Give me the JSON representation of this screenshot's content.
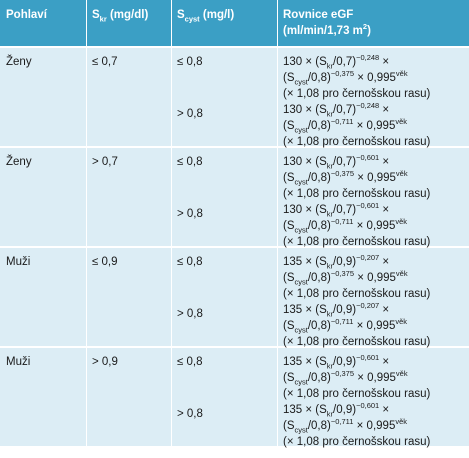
{
  "header": [
    [
      "Pohlaví"
    ],
    [
      "S",
      {
        "sub": "kr"
      },
      " (mg/dl)"
    ],
    [
      "S",
      {
        "sub": "cyst"
      },
      " (mg/l)"
    ],
    [
      "Rovnice eGF"
    ],
    [
      "(ml/min/1,73 m",
      {
        "sup": "2"
      },
      ")"
    ]
  ],
  "groups": [
    {
      "sex": "Ženy",
      "skr": "≤ 0,7",
      "rows": [
        {
          "scyst": "≤ 0,8",
          "formula": [
            [
              "130 × (S",
              {
                "sub": "kr"
              },
              "/0,7)",
              {
                "sup": "−0,248"
              },
              " ×"
            ],
            [
              "(S",
              {
                "sub": "cyst"
              },
              "/0,8)",
              {
                "sup": "−0,375"
              },
              " × 0,995",
              {
                "sup": "věk"
              }
            ],
            [
              "(× 1,08 pro černošskou rasu)"
            ]
          ]
        },
        {
          "scyst": "> 0,8",
          "formula": [
            [
              "130 × (S",
              {
                "sub": "kr"
              },
              "/0,7)",
              {
                "sup": "−0,248"
              },
              " ×"
            ],
            [
              "(S",
              {
                "sub": "cyst"
              },
              "/0,8)",
              {
                "sup": "−0,711"
              },
              " × 0,995",
              {
                "sup": "věk"
              }
            ],
            [
              "(× 1,08 pro černošskou rasu)"
            ]
          ]
        }
      ]
    },
    {
      "sex": "Ženy",
      "skr": "> 0,7",
      "rows": [
        {
          "scyst": "≤ 0,8",
          "formula": [
            [
              "130 × (S",
              {
                "sub": "kr"
              },
              "/0,7)",
              {
                "sup": "−0,601"
              },
              " ×"
            ],
            [
              "(S",
              {
                "sub": "cyst"
              },
              "/0,8)",
              {
                "sup": "−0,375"
              },
              " × 0,995",
              {
                "sup": "věk"
              }
            ],
            [
              "(× 1,08 pro černošskou rasu)"
            ]
          ]
        },
        {
          "scyst": "> 0,8",
          "formula": [
            [
              "130 × (S",
              {
                "sub": "kr"
              },
              "/0,7)",
              {
                "sup": "−0,601"
              },
              " ×"
            ],
            [
              "(S",
              {
                "sub": "cyst"
              },
              "/0,8)",
              {
                "sup": "−0,711"
              },
              " × 0,995",
              {
                "sup": "věk"
              }
            ],
            [
              "(× 1,08 pro černošskou rasu)"
            ]
          ]
        }
      ]
    },
    {
      "sex": "Muži",
      "skr": "≤ 0,9",
      "rows": [
        {
          "scyst": "≤ 0,8",
          "formula": [
            [
              "135 × (S",
              {
                "sub": "kr"
              },
              "/0,9)",
              {
                "sup": "−0,207"
              },
              " ×"
            ],
            [
              "(S",
              {
                "sub": "cyst"
              },
              "/0,8)",
              {
                "sup": "−0,375"
              },
              " × 0,995",
              {
                "sup": "věk"
              }
            ],
            [
              "(× 1,08 pro černošskou rasu)"
            ]
          ]
        },
        {
          "scyst": "> 0,8",
          "formula": [
            [
              "135 × (S",
              {
                "sub": "kr"
              },
              "/0,9)",
              {
                "sup": "−0,207"
              },
              " ×"
            ],
            [
              "(S",
              {
                "sub": "cyst"
              },
              "/0,8)",
              {
                "sup": "−0,711"
              },
              " × 0,995",
              {
                "sup": "věk"
              }
            ],
            [
              "(× 1,08 pro černošskou rasu)"
            ]
          ]
        }
      ]
    },
    {
      "sex": "Muži",
      "skr": "> 0,9",
      "rows": [
        {
          "scyst": "≤ 0,8",
          "formula": [
            [
              "135 × (S",
              {
                "sub": "kr"
              },
              "/0,9)",
              {
                "sup": "−0,601"
              },
              " ×"
            ],
            [
              "(S",
              {
                "sub": "cyst"
              },
              "/0,8)",
              {
                "sup": "−0,375"
              },
              " × 0,995",
              {
                "sup": "věk"
              }
            ],
            [
              "(× 1,08 pro černošskou rasu)"
            ]
          ]
        },
        {
          "scyst": "> 0,8",
          "formula": [
            [
              "135 × (S",
              {
                "sub": "kr"
              },
              "/0,9)",
              {
                "sup": "−0,601"
              },
              " ×"
            ],
            [
              "(S",
              {
                "sub": "cyst"
              },
              "/0,8)",
              {
                "sup": "−0,711"
              },
              " × 0,995",
              {
                "sup": "věk"
              }
            ],
            [
              "(× 1,08 pro černošskou rasu)"
            ]
          ]
        }
      ]
    }
  ]
}
